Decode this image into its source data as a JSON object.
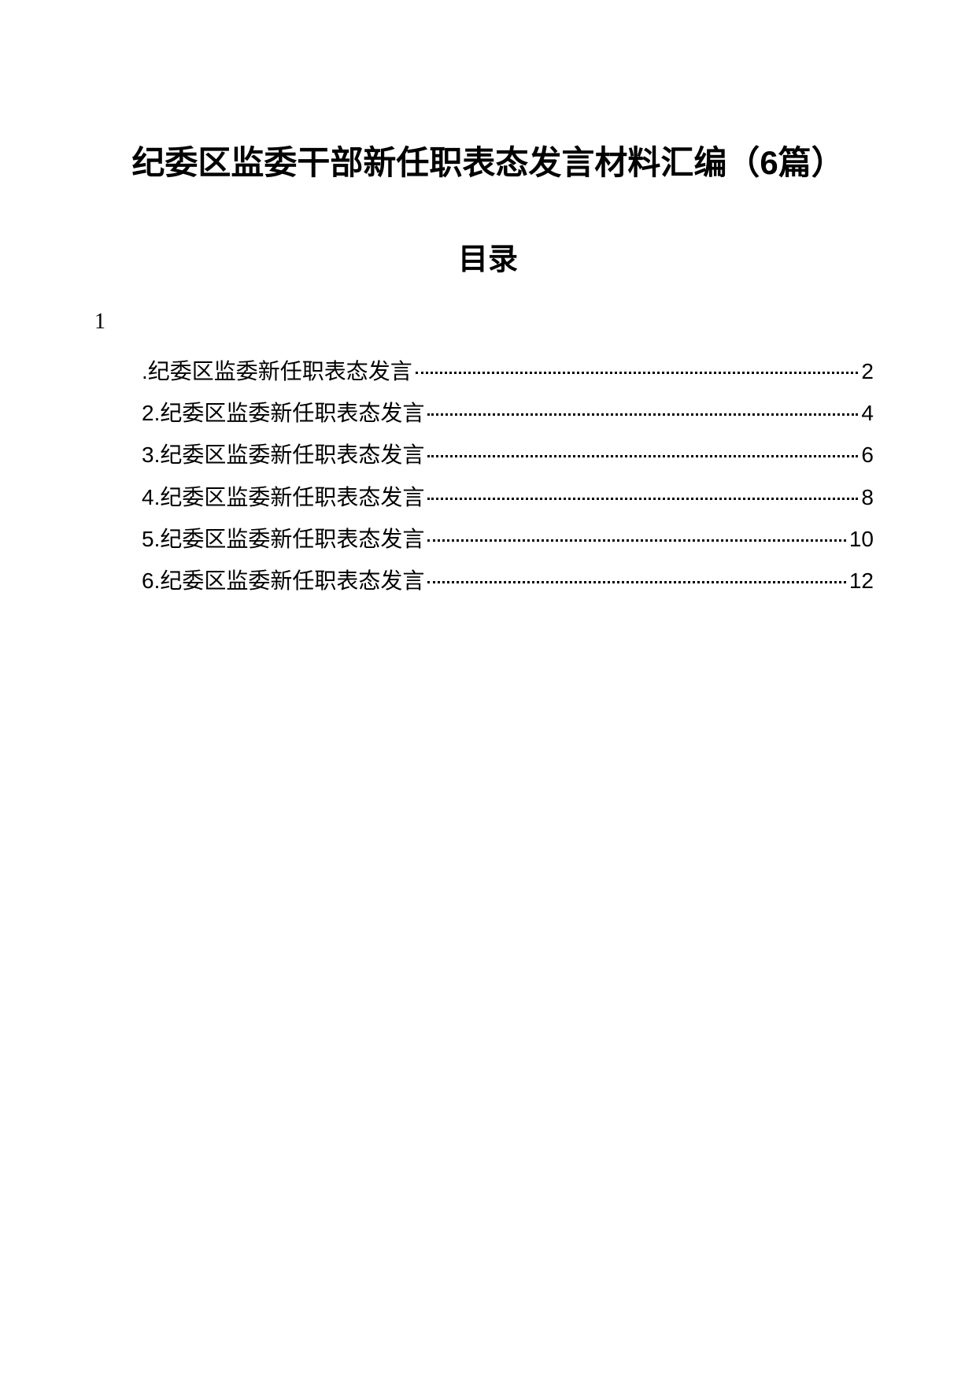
{
  "document": {
    "title": "纪委区监委干部新任职表态发言材料汇编（6篇）",
    "toc_heading": "目录",
    "leading_number": "1",
    "background_color": "#ffffff",
    "text_color": "#000000",
    "title_fontsize": 42,
    "toc_heading_fontsize": 38,
    "entry_fontsize": 28
  },
  "toc": {
    "entries": [
      {
        "label": ".纪委区监委新任职表态发言",
        "page": "2"
      },
      {
        "label": "2.纪委区监委新任职表态发言",
        "page": "4"
      },
      {
        "label": "3.纪委区监委新任职表态发言",
        "page": "6"
      },
      {
        "label": "4.纪委区监委新任职表态发言",
        "page": "8"
      },
      {
        "label": "5.纪委区监委新任职表态发言",
        "page": "10"
      },
      {
        "label": "6.纪委区监委新任职表态发言",
        "page": "12"
      }
    ]
  }
}
